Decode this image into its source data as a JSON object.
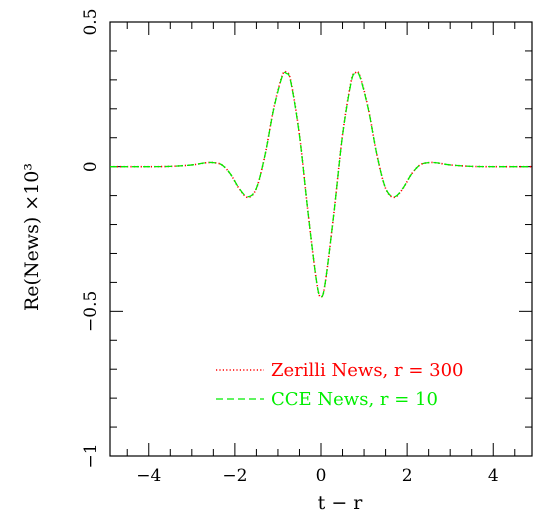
{
  "chart_data": {
    "type": "line",
    "xlabel": "t − r",
    "ylabel": "Re(News) ×10³",
    "xlim": [
      -4.9,
      4.9
    ],
    "ylim": [
      -1.0,
      0.5
    ],
    "x_ticks": [
      -4,
      -2,
      0,
      2,
      4
    ],
    "x_tick_labels": [
      "−4",
      "−2",
      "0",
      "2",
      "4"
    ],
    "y_ticks": [
      -1.0,
      -0.5,
      0,
      0.5
    ],
    "y_tick_labels": [
      "−1",
      "−0.5",
      "0",
      "0.5"
    ],
    "grid": false,
    "legend_position": "bottom-right",
    "series": [
      {
        "name": "Zerilli News, r = 300",
        "color": "#ff0000",
        "style": "dotted",
        "x": [
          -4.9,
          -4.0,
          -3.5,
          -3.0,
          -2.7,
          -2.5,
          -2.3,
          -2.1,
          -1.9,
          -1.7,
          -1.5,
          -1.3,
          -1.1,
          -0.9,
          -0.8,
          -0.7,
          -0.5,
          -0.3,
          -0.1,
          0.0,
          0.1,
          0.3,
          0.5,
          0.7,
          0.8,
          0.9,
          1.1,
          1.3,
          1.5,
          1.7,
          1.9,
          2.1,
          2.3,
          2.5,
          2.7,
          3.0,
          3.5,
          4.0,
          4.9
        ],
        "y": [
          0.0,
          0.0,
          0.001,
          0.006,
          0.013,
          0.014,
          0.006,
          -0.026,
          -0.076,
          -0.106,
          -0.075,
          0.04,
          0.2,
          0.315,
          0.325,
          0.295,
          0.11,
          -0.16,
          -0.4,
          -0.45,
          -0.4,
          -0.16,
          0.11,
          0.295,
          0.325,
          0.315,
          0.2,
          0.04,
          -0.075,
          -0.106,
          -0.076,
          -0.026,
          0.006,
          0.014,
          0.013,
          0.006,
          0.001,
          0.0,
          0.0
        ]
      },
      {
        "name": "CCE News, r = 10",
        "color": "#00ee00",
        "style": "dashed",
        "x": [
          -4.9,
          -4.0,
          -3.5,
          -3.0,
          -2.7,
          -2.5,
          -2.3,
          -2.1,
          -1.9,
          -1.7,
          -1.5,
          -1.3,
          -1.1,
          -0.9,
          -0.8,
          -0.7,
          -0.5,
          -0.3,
          -0.1,
          0.0,
          0.1,
          0.3,
          0.5,
          0.7,
          0.8,
          0.9,
          1.1,
          1.3,
          1.5,
          1.7,
          1.9,
          2.1,
          2.3,
          2.5,
          2.7,
          3.0,
          3.5,
          4.0,
          4.9
        ],
        "y": [
          0.0,
          0.0,
          0.001,
          0.006,
          0.013,
          0.014,
          0.006,
          -0.026,
          -0.075,
          -0.104,
          -0.074,
          0.04,
          0.198,
          0.312,
          0.322,
          0.292,
          0.108,
          -0.16,
          -0.4,
          -0.45,
          -0.4,
          -0.16,
          0.108,
          0.292,
          0.322,
          0.312,
          0.198,
          0.04,
          -0.074,
          -0.104,
          -0.075,
          -0.026,
          0.006,
          0.014,
          0.013,
          0.006,
          0.001,
          0.0,
          0.0
        ]
      }
    ]
  }
}
